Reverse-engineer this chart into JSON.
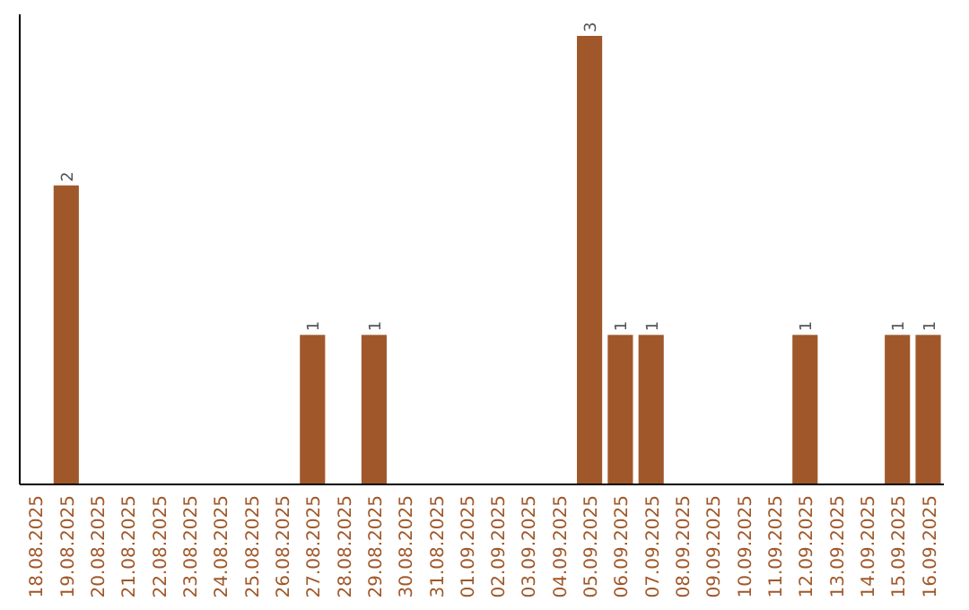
{
  "chart_data": {
    "type": "bar",
    "categories": [
      "18.08.2025",
      "19.08.2025",
      "20.08.2025",
      "21.08.2025",
      "22.08.2025",
      "23.08.2025",
      "24.08.2025",
      "25.08.2025",
      "26.08.2025",
      "27.08.2025",
      "28.08.2025",
      "29.08.2025",
      "30.08.2025",
      "31.08.2025",
      "01.09.2025",
      "02.09.2025",
      "03.09.2025",
      "04.09.2025",
      "05.09.2025",
      "06.09.2025",
      "07.09.2025",
      "08.09.2025",
      "09.09.2025",
      "10.09.2025",
      "11.09.2025",
      "12.09.2025",
      "13.09.2025",
      "14.09.2025",
      "15.09.2025",
      "16.09.2025"
    ],
    "values": [
      0,
      2,
      0,
      0,
      0,
      0,
      0,
      0,
      0,
      1,
      0,
      1,
      0,
      0,
      0,
      0,
      0,
      0,
      3,
      1,
      1,
      0,
      0,
      0,
      0,
      1,
      0,
      0,
      1,
      1
    ],
    "value_labels": [
      null,
      "2",
      null,
      null,
      null,
      null,
      null,
      null,
      null,
      "1",
      null,
      "1",
      null,
      null,
      null,
      null,
      null,
      null,
      "3",
      "1",
      "1",
      null,
      null,
      null,
      null,
      "1",
      null,
      null,
      "1",
      "1"
    ],
    "color": "#a0582a",
    "ylim": [
      0,
      3
    ],
    "tick_labels": "x"
  }
}
